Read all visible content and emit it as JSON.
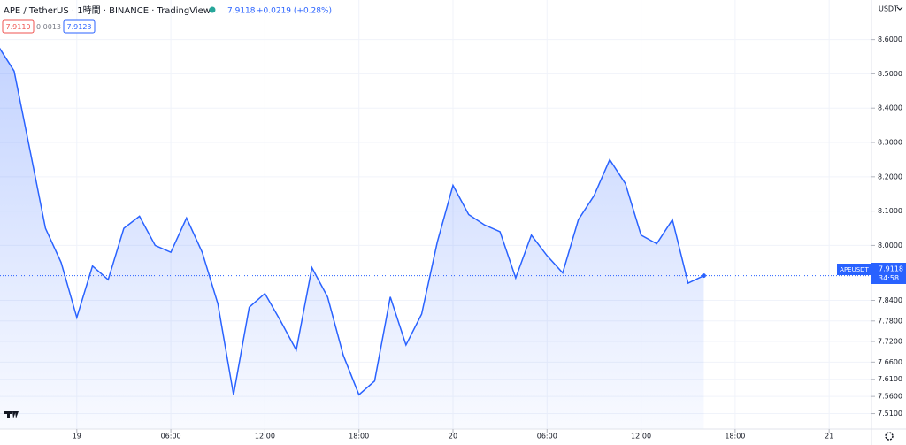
{
  "chart_data": {
    "type": "line",
    "title": "APE / TetherUS · 1時間 · BINANCE · TradingView",
    "header_price": "7.9118",
    "header_change": "+0.0219 (+0.28%)",
    "bid": "7.9110",
    "spread": "0.0013",
    "ask": "7.9123",
    "currency": "USDT",
    "symbol": "APEUSDT",
    "countdown": "34:58",
    "last_price": {
      "value": 7.9118,
      "label": "7.9118"
    },
    "color": "#2962ff",
    "values": [
      8.58,
      8.508,
      8.28,
      8.05,
      7.95,
      7.79,
      7.94,
      7.9,
      8.05,
      8.085,
      8.0,
      7.98,
      8.08,
      7.98,
      7.83,
      7.565,
      7.82,
      7.86,
      7.78,
      7.695,
      7.935,
      7.85,
      7.68,
      7.565,
      7.605,
      7.85,
      7.71,
      7.8,
      8.01,
      8.175,
      8.09,
      8.06,
      8.04,
      7.905,
      8.03,
      7.97,
      7.92,
      8.075,
      8.145,
      8.25,
      8.18,
      8.03,
      8.005,
      8.075,
      7.89,
      7.9118
    ],
    "xlim": [
      0.1,
      55.7
    ],
    "xticks": [
      {
        "value": 5,
        "label": "19"
      },
      {
        "value": 11,
        "label": "06:00"
      },
      {
        "value": 17,
        "label": "12:00"
      },
      {
        "value": 23,
        "label": "18:00"
      },
      {
        "value": 29,
        "label": "20"
      },
      {
        "value": 35,
        "label": "06:00"
      },
      {
        "value": 41,
        "label": "12:00"
      },
      {
        "value": 47,
        "label": "18:00"
      },
      {
        "value": 53,
        "label": "21"
      }
    ],
    "ylim": [
      7.465,
      8.715
    ],
    "yticks": [
      {
        "value": 8.6,
        "label": "8.6000"
      },
      {
        "value": 8.5,
        "label": "8.5000"
      },
      {
        "value": 8.4,
        "label": "8.4000"
      },
      {
        "value": 8.3,
        "label": "8.3000"
      },
      {
        "value": 8.2,
        "label": "8.2000"
      },
      {
        "value": 8.1,
        "label": "8.1000"
      },
      {
        "value": 8.0,
        "label": "8.0000"
      },
      {
        "value": 7.84,
        "label": "7.8400"
      },
      {
        "value": 7.78,
        "label": "7.7800"
      },
      {
        "value": 7.72,
        "label": "7.7200"
      },
      {
        "value": 7.66,
        "label": "7.6600"
      },
      {
        "value": 7.61,
        "label": "7.6100"
      },
      {
        "value": 7.56,
        "label": "7.5600"
      },
      {
        "value": 7.51,
        "label": "7.5100"
      }
    ],
    "grid": true
  }
}
